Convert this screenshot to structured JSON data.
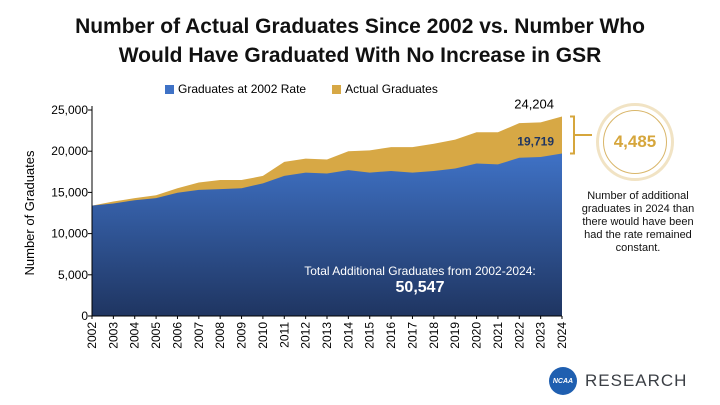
{
  "title_line1": "Number of Actual Graduates Since 2002 vs. Number Who",
  "title_line2": "Would Have Graduated With No Increase in GSR",
  "legend": {
    "series1": "Graduates at 2002 Rate",
    "series2": "Actual Graduates"
  },
  "colors": {
    "rate2002_top": "#3f72c6",
    "rate2002_bottom": "#1f3561",
    "actual": "#d7a845",
    "accent_gold": "#d6a63c",
    "logo_blue": "#1f5fb0"
  },
  "callout": {
    "value": "4,485",
    "note": "Number of additional graduates in 2024 than there would have been had the rate remained constant."
  },
  "total": {
    "label": "Total Additional Graduates from 2002-2024:",
    "value": "50,547"
  },
  "logo": {
    "badge": "NCAA",
    "word": "RESEARCH"
  },
  "chart_data": {
    "type": "area",
    "title": "Number of Actual Graduates Since 2002 vs. Number Who Would Have Graduated With No Increase in GSR",
    "xlabel": "",
    "ylabel": "Number of Graduates",
    "ylim": [
      0,
      25000
    ],
    "yticks": [
      0,
      5000,
      10000,
      15000,
      20000,
      25000
    ],
    "ytick_labels": [
      "0",
      "5,000",
      "10,000",
      "15,000",
      "20,000",
      "25,000"
    ],
    "grid": false,
    "legend_position": "top",
    "x": [
      "2002",
      "2003",
      "2004",
      "2005",
      "2006",
      "2007",
      "2008",
      "2009",
      "2010",
      "2011",
      "2012",
      "2013",
      "2014",
      "2015",
      "2016",
      "2017",
      "2018",
      "2019",
      "2020",
      "2021",
      "2022",
      "2023",
      "2024"
    ],
    "series": [
      {
        "name": "Graduates at 2002 Rate",
        "values": [
          13400,
          13650,
          14050,
          14300,
          14950,
          15300,
          15400,
          15500,
          16100,
          17000,
          17400,
          17300,
          17700,
          17400,
          17600,
          17400,
          17600,
          17900,
          18500,
          18400,
          19200,
          19300,
          19719
        ]
      },
      {
        "name": "Actual Graduates",
        "values": [
          13400,
          13900,
          14300,
          14650,
          15500,
          16200,
          16500,
          16500,
          17000,
          18700,
          19100,
          19000,
          20000,
          20100,
          20500,
          20500,
          20900,
          21400,
          22300,
          22300,
          23400,
          23500,
          24204
        ]
      }
    ],
    "data_labels": [
      {
        "series": "Actual Graduates",
        "x": "2024",
        "text": "24,204"
      },
      {
        "series": "Graduates at 2002 Rate",
        "x": "2024",
        "text": "19,719"
      }
    ]
  }
}
